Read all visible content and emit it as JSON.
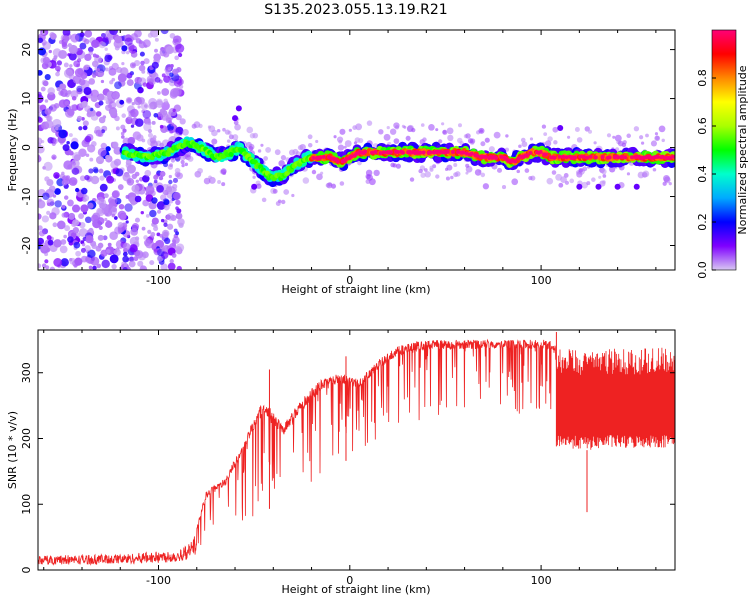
{
  "title": "S135.2023.055.13.19.R21",
  "chart_data": [
    {
      "type": "heatmap",
      "xlabel": "Height of straight line (km)",
      "ylabel": "Frequency (Hz)",
      "xlim": [
        -163,
        170
      ],
      "ylim": [
        -25,
        24
      ],
      "x_ticks": [
        -100,
        0,
        100
      ],
      "y_ticks": [
        -20,
        -10,
        0,
        10,
        20
      ],
      "colorbar": {
        "label": "Normalized spectral amplitude",
        "range": [
          0,
          1
        ],
        "ticks": [
          0.0,
          0.2,
          0.4,
          0.6,
          0.8
        ],
        "tick_labels": [
          "0.0",
          "0.2",
          "0.4",
          "0.6",
          "0.8"
        ],
        "colormap": [
          "#d8c8f2",
          "#7f00ff",
          "#0000ff",
          "#00aaff",
          "#00ffcc",
          "#00ff00",
          "#aaff00",
          "#ffff00",
          "#ff8800",
          "#ff0000",
          "#ff0077"
        ]
      },
      "ridge": {
        "description_points_x": [
          -120,
          -105,
          -95,
          -85,
          -78,
          -70,
          -62,
          -58,
          -50,
          -42,
          -36,
          -30,
          -22,
          -15,
          -10,
          -5,
          0,
          5,
          10,
          20,
          30,
          40,
          50,
          60,
          70,
          80,
          85,
          90,
          95,
          100,
          105,
          110,
          120,
          140,
          160,
          170
        ],
        "description_points_y": [
          -1,
          -2,
          -1,
          1,
          0,
          -2,
          -1,
          0,
          -3,
          -6,
          -6,
          -4,
          -2,
          -2,
          -2,
          -3,
          -2,
          -1,
          -1,
          -1,
          -1,
          -1,
          -1,
          -1,
          -2,
          -2,
          -3,
          -2,
          -1,
          -1,
          -2,
          -2,
          -2,
          -2,
          -2,
          -2
        ]
      }
    },
    {
      "type": "line",
      "xlabel": "Height of straight line (km)",
      "ylabel": "SNR (10 * v/v)",
      "xlim": [
        -163,
        170
      ],
      "ylim": [
        0,
        365
      ],
      "x_ticks": [
        -100,
        0,
        100
      ],
      "y_ticks": [
        0,
        100,
        200,
        300
      ],
      "color": "#ee2222",
      "envelope": {
        "x": [
          -163,
          -120,
          -90,
          -82,
          -75,
          -65,
          -55,
          -45,
          -35,
          -25,
          -15,
          -5,
          5,
          15,
          25,
          35,
          45,
          55,
          65,
          75,
          85,
          95,
          105,
          108,
          115,
          125,
          135,
          145,
          155,
          170
        ],
        "base": [
          8,
          9,
          12,
          18,
          35,
          45,
          70,
          90,
          100,
          120,
          140,
          160,
          180,
          200,
          215,
          225,
          230,
          232,
          234,
          236,
          237,
          238,
          240,
          188,
          185,
          182,
          186,
          184,
          186,
          186
        ],
        "top": [
          22,
          24,
          30,
          45,
          120,
          140,
          200,
          260,
          220,
          260,
          290,
          300,
          290,
          320,
          340,
          348,
          350,
          350,
          350,
          350,
          350,
          350,
          350,
          340,
          338,
          335,
          338,
          336,
          338,
          338
        ],
        "spikes": [
          {
            "x": -42,
            "y": 305
          },
          {
            "x": -2,
            "y": 325
          },
          {
            "x": 108,
            "y": 362
          },
          {
            "x": 124,
            "y": 88
          }
        ]
      }
    }
  ]
}
